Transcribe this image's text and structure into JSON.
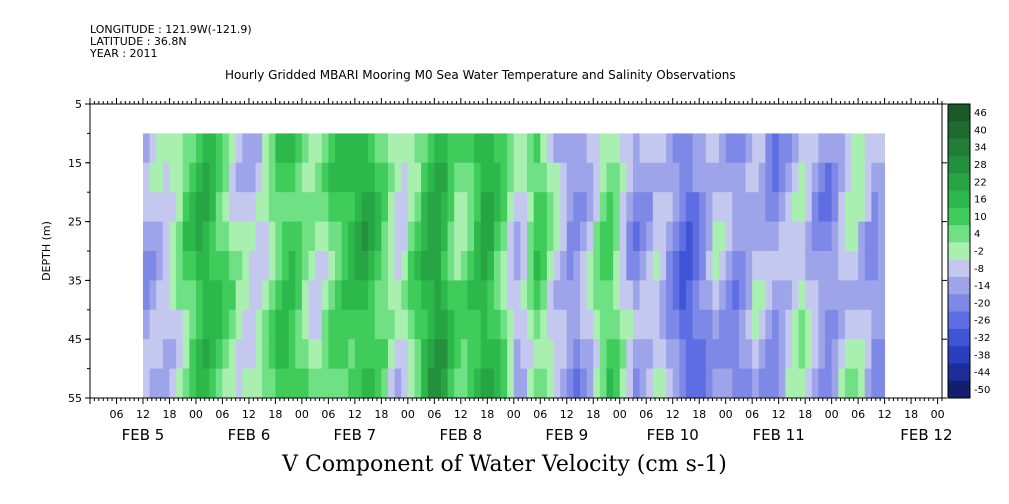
{
  "header": {
    "longitude": "LONGITUDE : 121.9W(-121.9)",
    "latitude": "LATITUDE : 36.8N",
    "year": "YEAR : 2011",
    "title": "Hourly Gridded MBARI Mooring M0 Sea Water Temperature and Salinity Observations"
  },
  "chart_data": {
    "type": "heatmap",
    "title": "V Component of Water Velocity (cm s-1)",
    "ylabel": "DEPTH (m)",
    "xlabel": "",
    "y_axis": {
      "range": [
        5,
        55
      ],
      "inverted": true,
      "ticks": [
        5,
        15,
        25,
        35,
        45,
        55
      ]
    },
    "data_depth_range": [
      10,
      55
    ],
    "x_axis": {
      "range_hours": [
        0,
        193
      ],
      "hour_ticks": [
        "06",
        "12",
        "18",
        "00",
        "06",
        "12",
        "18",
        "00",
        "06",
        "12",
        "18",
        "00",
        "06",
        "12",
        "18",
        "00",
        "06",
        "12",
        "18",
        "00",
        "06",
        "12",
        "18",
        "00",
        "06",
        "12",
        "18",
        "00",
        "06",
        "12",
        "18",
        "00"
      ],
      "date_labels": [
        "FEB  5",
        "FEB  6",
        "FEB  7",
        "FEB  8",
        "FEB  9",
        "FEB 10",
        "FEB 11",
        "FEB 12"
      ],
      "data_start_hour": 12
    },
    "colorbar": {
      "labels": [
        "46",
        "40",
        "34",
        "28",
        "22",
        "16",
        "10",
        "4",
        "-2",
        "-8",
        "-14",
        "-20",
        "-26",
        "-32",
        "-38",
        "-44",
        "-50"
      ],
      "colors": [
        "#1a5a2a",
        "#1e6b30",
        "#217d37",
        "#24903e",
        "#27a444",
        "#2db84b",
        "#3fcc5a",
        "#6fe084",
        "#a9f0b0",
        "#c4c8ef",
        "#9ea4ea",
        "#7e88e6",
        "#5e6ee2",
        "#3e55d8",
        "#2a3fbe",
        "#1d2e98",
        "#121e6e"
      ]
    },
    "series": [
      {
        "day": "FEB 5",
        "hourly_mean_v": [
          -14,
          -12,
          -10,
          -8,
          -4,
          0,
          6,
          10,
          14,
          16,
          12,
          8,
          4,
          0,
          -4,
          -6
        ]
      },
      {
        "day": "FEB 6",
        "hourly_mean_v": [
          -8,
          -6,
          -2,
          4,
          10,
          14,
          12,
          8,
          4,
          0,
          -2,
          2,
          6,
          10,
          12,
          14
        ]
      },
      {
        "day": "FEB 7",
        "hourly_mean_v": [
          16,
          18,
          14,
          8,
          4,
          -2,
          -6,
          -4,
          2,
          8,
          14,
          20,
          22,
          18,
          10,
          4
        ]
      },
      {
        "day": "FEB 8",
        "hourly_mean_v": [
          6,
          10,
          16,
          20,
          18,
          12,
          4,
          -4,
          -10,
          -6,
          2,
          8,
          4,
          -2,
          -8,
          -12
        ]
      },
      {
        "day": "FEB 9",
        "hourly_mean_v": [
          -16,
          -18,
          -14,
          -8,
          -2,
          4,
          8,
          2,
          -6,
          -12,
          -16,
          -14,
          -10,
          -6,
          -8,
          -14
        ]
      },
      {
        "day": "FEB 10",
        "hourly_mean_v": [
          -20,
          -24,
          -26,
          -22,
          -18,
          -14,
          -10,
          -12,
          -16,
          -20,
          -18,
          -14,
          -10,
          -12,
          -16,
          -18
        ]
      },
      {
        "day": "FEB 11",
        "hourly_mean_v": [
          -14,
          -10,
          -6,
          -4,
          -8,
          -12,
          -16,
          -18,
          -14,
          -10,
          -6,
          -4,
          -8,
          -12,
          -16,
          -14
        ]
      }
    ]
  }
}
